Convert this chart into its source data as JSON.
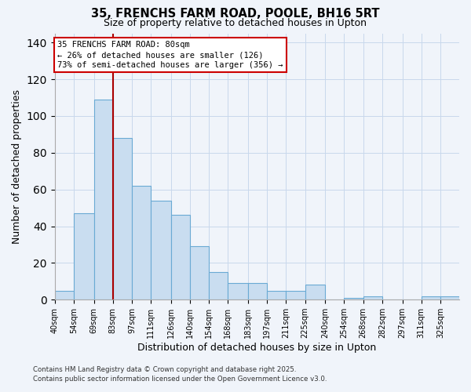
{
  "title1": "35, FRENCHS FARM ROAD, POOLE, BH16 5RT",
  "title2": "Size of property relative to detached houses in Upton",
  "xlabel": "Distribution of detached houses by size in Upton",
  "ylabel": "Number of detached properties",
  "bar_labels": [
    "40sqm",
    "54sqm",
    "69sqm",
    "83sqm",
    "97sqm",
    "111sqm",
    "126sqm",
    "140sqm",
    "154sqm",
    "168sqm",
    "183sqm",
    "197sqm",
    "211sqm",
    "225sqm",
    "240sqm",
    "254sqm",
    "268sqm",
    "282sqm",
    "297sqm",
    "311sqm",
    "325sqm"
  ],
  "bar_values": [
    5,
    47,
    109,
    88,
    62,
    54,
    46,
    29,
    15,
    9,
    9,
    5,
    5,
    8,
    0,
    1,
    2,
    0,
    0,
    2,
    2
  ],
  "bar_color": "#c9ddf0",
  "bar_edgecolor": "#6aaad4",
  "ylim": [
    0,
    145
  ],
  "yticks": [
    0,
    20,
    40,
    60,
    80,
    100,
    120,
    140
  ],
  "vline_color": "#aa0000",
  "annotation_title": "35 FRENCHS FARM ROAD: 80sqm",
  "annotation_line1": "← 26% of detached houses are smaller (126)",
  "annotation_line2": "73% of semi-detached houses are larger (356) →",
  "annotation_box_color": "#ffffff",
  "annotation_box_edgecolor": "#cc0000",
  "background_color": "#f0f4fa",
  "grid_color": "#c8d8ec",
  "footer1": "Contains HM Land Registry data © Crown copyright and database right 2025.",
  "footer2": "Contains public sector information licensed under the Open Government Licence v3.0.",
  "bin_edges": [
    40,
    54,
    69,
    83,
    97,
    111,
    126,
    140,
    154,
    168,
    183,
    197,
    211,
    225,
    240,
    254,
    268,
    282,
    297,
    311,
    325,
    339
  ],
  "property_size": 80
}
